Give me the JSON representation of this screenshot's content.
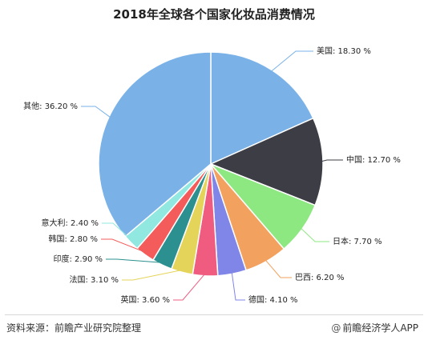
{
  "chart_data": {
    "type": "pie",
    "title": "2018年全球各个国家化妆品消费情况",
    "slices": [
      {
        "label": "美国",
        "value": 18.3,
        "text": "美国: 18.30 %",
        "color": "#7ab2e8"
      },
      {
        "label": "中国",
        "value": 12.7,
        "text": "中国: 12.70 %",
        "color": "#3d3d45"
      },
      {
        "label": "日本",
        "value": 7.7,
        "text": "日本: 7.70 %",
        "color": "#8ee882"
      },
      {
        "label": "巴西",
        "value": 6.2,
        "text": "巴西: 6.20 %",
        "color": "#f3a15e"
      },
      {
        "label": "德国",
        "value": 4.1,
        "text": "德国: 4.10 %",
        "color": "#8085e8"
      },
      {
        "label": "英国",
        "value": 3.6,
        "text": "英国: 3.60 %",
        "color": "#ef5c80"
      },
      {
        "label": "法国",
        "value": 3.1,
        "text": "法国: 3.10 %",
        "color": "#e5d45a"
      },
      {
        "label": "印度",
        "value": 2.9,
        "text": "印度: 2.90 %",
        "color": "#2b908f"
      },
      {
        "label": "韩国",
        "value": 2.8,
        "text": "韩国: 2.80 %",
        "color": "#f45b5b"
      },
      {
        "label": "意大利",
        "value": 2.4,
        "text": "意大利: 2.40 %",
        "color": "#91e8e1"
      },
      {
        "label": "其他",
        "value": 36.2,
        "text": "其他: 36.20 %",
        "color": "#7ab2e8"
      }
    ]
  },
  "footer": {
    "source": "资料来源：前瞻产业研究院整理",
    "brand": "前瞻经济学人APP",
    "brand_icon": "at-icon"
  }
}
